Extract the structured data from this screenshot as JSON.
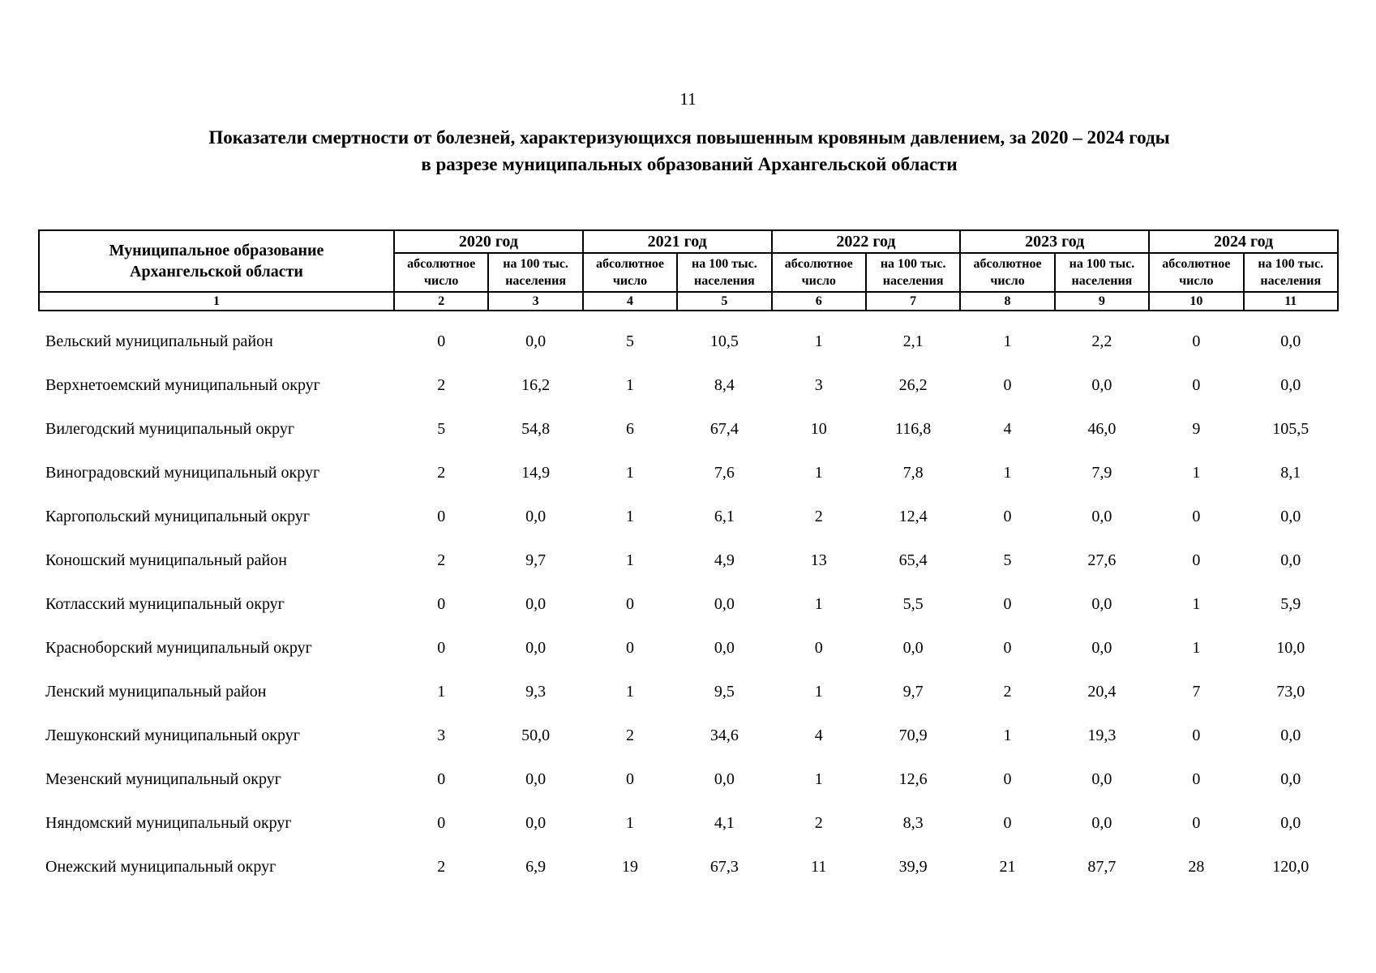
{
  "page": {
    "number": "11"
  },
  "title": {
    "line1": "Показатели смертности от болезней, характеризующихся повышенным кровяным давлением, за 2020 – 2024 годы",
    "line2": "в разрезе муниципальных образований Архангельской области"
  },
  "table": {
    "corner_header": "Муниципальное образование\nАрхангельской области",
    "years": [
      "2020 год",
      "2021 год",
      "2022 год",
      "2023 год",
      "2024 год"
    ],
    "subheaders": {
      "absolute": "абсолютное\nчисло",
      "per100k": "на 100 тыс.\nнаселения"
    },
    "column_numbers": [
      "1",
      "2",
      "3",
      "4",
      "5",
      "6",
      "7",
      "8",
      "9",
      "10",
      "11"
    ],
    "rows": [
      {
        "name": "Вельский муниципальный район",
        "values": [
          "0",
          "0,0",
          "5",
          "10,5",
          "1",
          "2,1",
          "1",
          "2,2",
          "0",
          "0,0"
        ]
      },
      {
        "name": "Верхнетоемский муниципальный округ",
        "values": [
          "2",
          "16,2",
          "1",
          "8,4",
          "3",
          "26,2",
          "0",
          "0,0",
          "0",
          "0,0"
        ]
      },
      {
        "name": "Вилегодский муниципальный округ",
        "values": [
          "5",
          "54,8",
          "6",
          "67,4",
          "10",
          "116,8",
          "4",
          "46,0",
          "9",
          "105,5"
        ]
      },
      {
        "name": "Виноградовский муниципальный округ",
        "values": [
          "2",
          "14,9",
          "1",
          "7,6",
          "1",
          "7,8",
          "1",
          "7,9",
          "1",
          "8,1"
        ]
      },
      {
        "name": "Каргопольский муниципальный округ",
        "values": [
          "0",
          "0,0",
          "1",
          "6,1",
          "2",
          "12,4",
          "0",
          "0,0",
          "0",
          "0,0"
        ]
      },
      {
        "name": "Коношский муниципальный район",
        "values": [
          "2",
          "9,7",
          "1",
          "4,9",
          "13",
          "65,4",
          "5",
          "27,6",
          "0",
          "0,0"
        ]
      },
      {
        "name": "Котласский муниципальный округ",
        "values": [
          "0",
          "0,0",
          "0",
          "0,0",
          "1",
          "5,5",
          "0",
          "0,0",
          "1",
          "5,9"
        ]
      },
      {
        "name": "Красноборский муниципальный округ",
        "values": [
          "0",
          "0,0",
          "0",
          "0,0",
          "0",
          "0,0",
          "0",
          "0,0",
          "1",
          "10,0"
        ]
      },
      {
        "name": "Ленский муниципальный район",
        "values": [
          "1",
          "9,3",
          "1",
          "9,5",
          "1",
          "9,7",
          "2",
          "20,4",
          "7",
          "73,0"
        ]
      },
      {
        "name": "Лешуконский муниципальный округ",
        "values": [
          "3",
          "50,0",
          "2",
          "34,6",
          "4",
          "70,9",
          "1",
          "19,3",
          "0",
          "0,0"
        ]
      },
      {
        "name": "Мезенский муниципальный округ",
        "values": [
          "0",
          "0,0",
          "0",
          "0,0",
          "1",
          "12,6",
          "0",
          "0,0",
          "0",
          "0,0"
        ]
      },
      {
        "name": "Няндомский муниципальный округ",
        "values": [
          "0",
          "0,0",
          "1",
          "4,1",
          "2",
          "8,3",
          "0",
          "0,0",
          "0",
          "0,0"
        ]
      },
      {
        "name": "Онежский муниципальный округ",
        "values": [
          "2",
          "6,9",
          "19",
          "67,3",
          "11",
          "39,9",
          "21",
          "87,7",
          "28",
          "120,0"
        ]
      }
    ]
  }
}
